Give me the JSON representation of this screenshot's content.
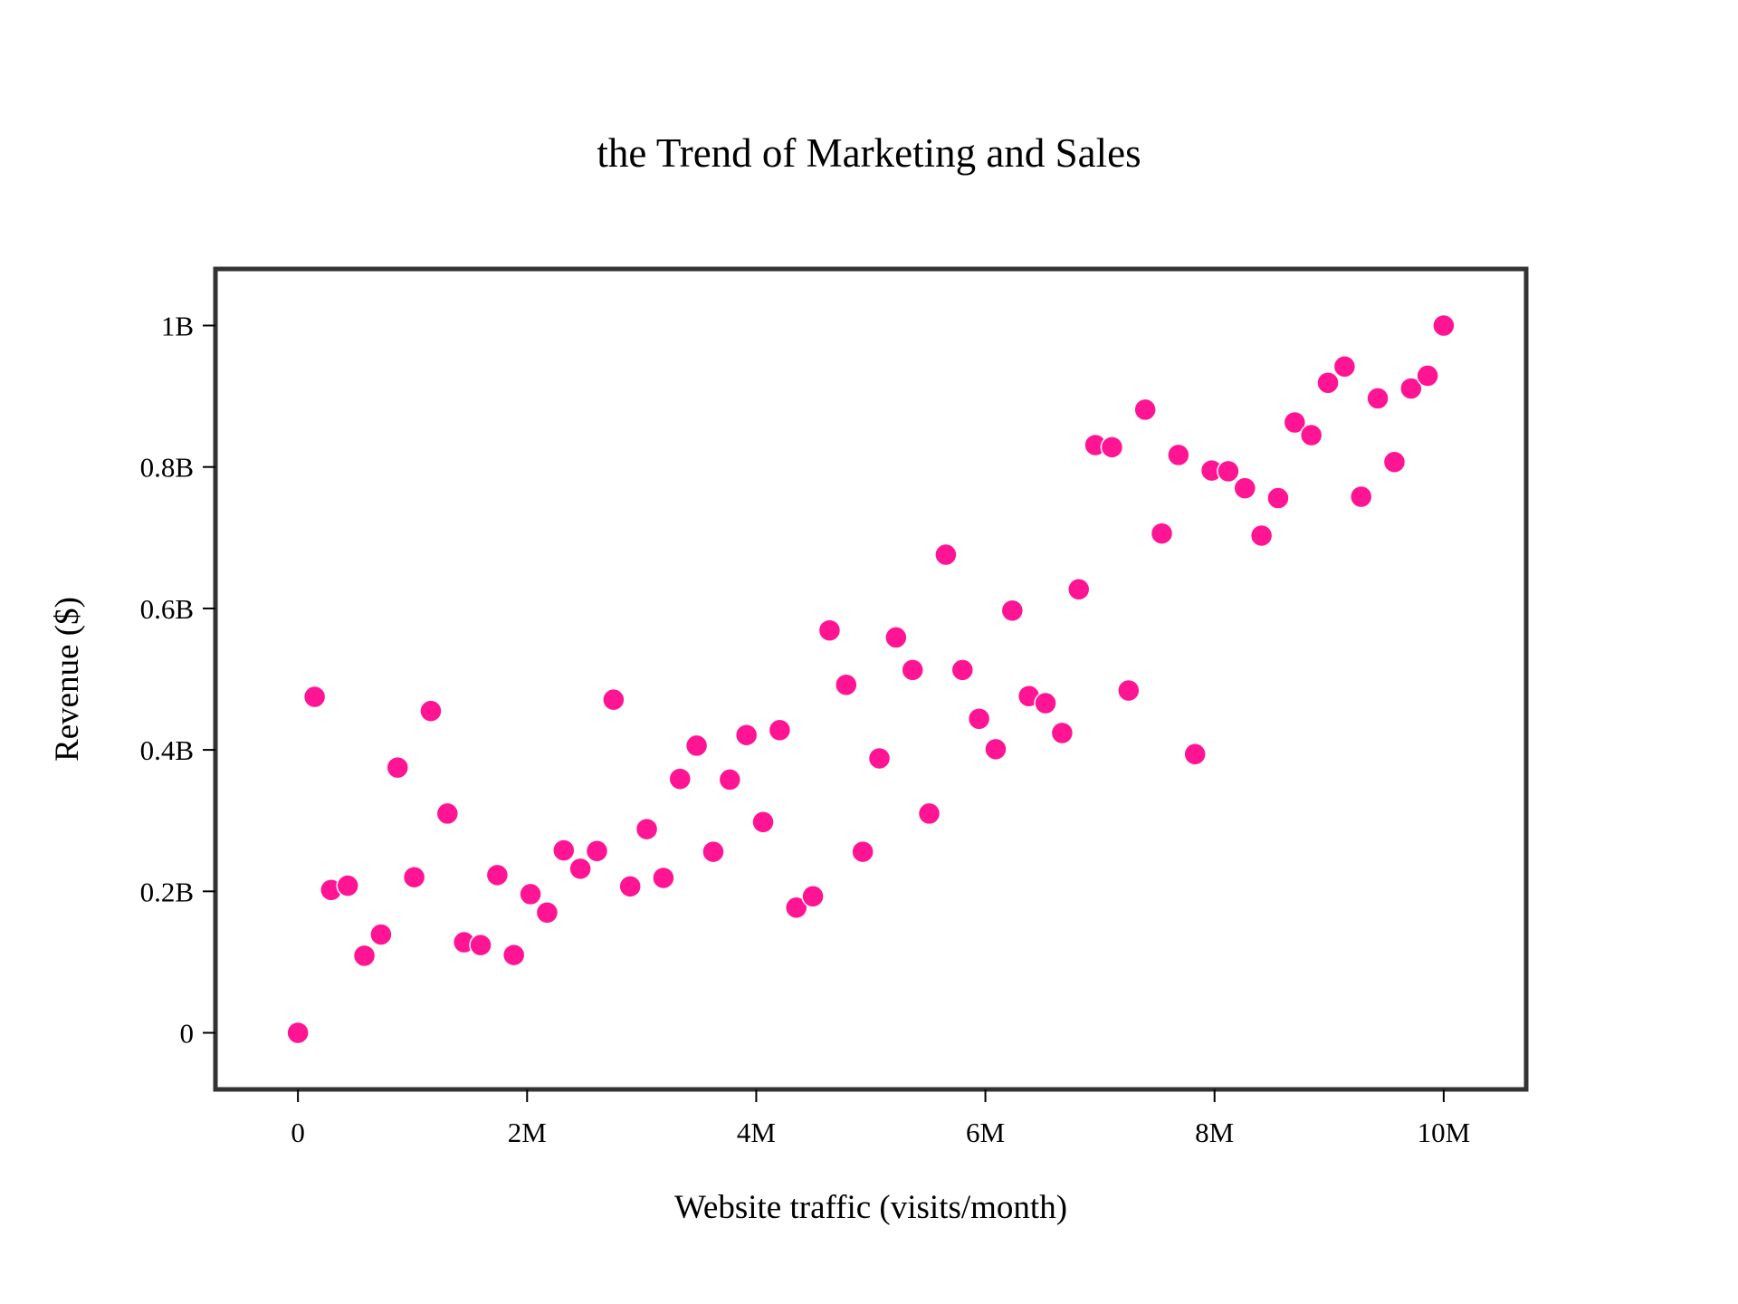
{
  "chart_data": {
    "type": "scatter",
    "title": "the Trend of Marketing and Sales",
    "xlabel": "Website traffic (visits/month)",
    "ylabel": "Revenue ($)",
    "xlim": [
      -0.72,
      10.72
    ],
    "ylim": [
      -0.08,
      1.08
    ],
    "x_unit": "millions of visits/month",
    "y_unit": "billions of dollars",
    "x_ticks": [
      {
        "value": 0,
        "label": "0"
      },
      {
        "value": 2,
        "label": "2M"
      },
      {
        "value": 4,
        "label": "4M"
      },
      {
        "value": 6,
        "label": "6M"
      },
      {
        "value": 8,
        "label": "8M"
      },
      {
        "value": 10,
        "label": "10M"
      }
    ],
    "y_ticks": [
      {
        "value": 0,
        "label": "0"
      },
      {
        "value": 0.2,
        "label": "0.2B"
      },
      {
        "value": 0.4,
        "label": "0.4B"
      },
      {
        "value": 0.6,
        "label": "0.6B"
      },
      {
        "value": 0.8,
        "label": "0.8B"
      },
      {
        "value": 1.0,
        "label": "1B"
      }
    ],
    "grid": false,
    "legend": "none",
    "series": [
      {
        "name": "Revenue",
        "color": "#ff1493",
        "x": [
          0.0,
          0.146,
          0.29,
          0.435,
          0.58,
          0.725,
          0.87,
          1.015,
          1.16,
          1.305,
          1.45,
          1.595,
          1.74,
          1.885,
          2.03,
          2.175,
          2.32,
          2.465,
          2.61,
          2.755,
          2.9,
          3.045,
          3.19,
          3.335,
          3.48,
          3.625,
          3.77,
          3.915,
          4.06,
          4.205,
          4.35,
          4.495,
          4.64,
          4.785,
          4.93,
          5.075,
          5.22,
          5.365,
          5.51,
          5.655,
          5.8,
          5.945,
          6.09,
          6.235,
          6.38,
          6.525,
          6.67,
          6.815,
          6.96,
          7.105,
          7.25,
          7.395,
          7.54,
          7.685,
          7.83,
          7.975,
          8.12,
          8.265,
          8.41,
          8.555,
          8.7,
          8.845,
          8.99,
          9.135,
          9.28,
          9.425,
          9.57,
          9.715,
          9.86,
          10.0
        ],
        "y": [
          0.0,
          0.475,
          0.202,
          0.208,
          0.109,
          0.139,
          0.375,
          0.22,
          0.455,
          0.31,
          0.128,
          0.124,
          0.223,
          0.11,
          0.196,
          0.17,
          0.258,
          0.232,
          0.257,
          0.471,
          0.207,
          0.288,
          0.219,
          0.359,
          0.406,
          0.256,
          0.358,
          0.421,
          0.298,
          0.428,
          0.177,
          0.193,
          0.569,
          0.492,
          0.256,
          0.388,
          0.559,
          0.513,
          0.31,
          0.676,
          0.513,
          0.444,
          0.401,
          0.597,
          0.476,
          0.466,
          0.424,
          0.627,
          0.831,
          0.828,
          0.484,
          0.881,
          0.706,
          0.817,
          0.394,
          0.795,
          0.794,
          0.77,
          0.703,
          0.756,
          0.863,
          0.845,
          0.919,
          0.942,
          0.758,
          0.897,
          0.807,
          0.911,
          0.929,
          1.0
        ]
      }
    ]
  }
}
